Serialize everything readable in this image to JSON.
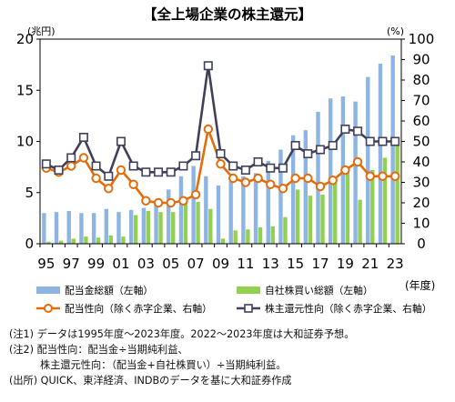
{
  "chart_data": {
    "type": "bar+line",
    "title": "【全上場企業の株主還元】",
    "left_axis": {
      "unit": "(兆円)",
      "ylim": [
        0,
        20
      ],
      "ticks": [
        0,
        5,
        10,
        15,
        20
      ]
    },
    "right_axis": {
      "unit": "(%)",
      "ylim": [
        0,
        100
      ],
      "ticks": [
        0,
        10,
        20,
        30,
        40,
        50,
        60,
        70,
        80,
        90,
        100
      ]
    },
    "x_unit": "(年度)",
    "x": [
      1995,
      1996,
      1997,
      1998,
      1999,
      2000,
      2001,
      2002,
      2003,
      2004,
      2005,
      2006,
      2007,
      2008,
      2009,
      2010,
      2011,
      2012,
      2013,
      2014,
      2015,
      2016,
      2017,
      2018,
      2019,
      2020,
      2021,
      2022,
      2023
    ],
    "x_tick_labels": [
      "95",
      "97",
      "99",
      "01",
      "03",
      "05",
      "07",
      "09",
      "11",
      "13",
      "15",
      "17",
      "19",
      "21",
      "23"
    ],
    "bar_series": [
      {
        "name": "配当金総額（左軸）",
        "color": "#8db4e2",
        "values": [
          3.0,
          3.1,
          3.2,
          3.0,
          3.0,
          3.4,
          3.1,
          3.3,
          3.5,
          4.2,
          5.3,
          6.6,
          7.6,
          6.6,
          5.7,
          6.1,
          6.6,
          6.9,
          8.1,
          9.2,
          10.6,
          11.1,
          12.9,
          14.2,
          14.4,
          13.9,
          16.3,
          17.6,
          18.4
        ]
      },
      {
        "name": "自社株買い総額（左軸）",
        "color": "#92d050",
        "values": [
          0.2,
          0.3,
          0.5,
          0.7,
          0.6,
          0.8,
          0.7,
          2.8,
          3.2,
          3.1,
          3.1,
          4.0,
          4.1,
          3.4,
          0.5,
          1.3,
          1.4,
          1.6,
          1.7,
          2.6,
          5.3,
          4.7,
          4.8,
          6.2,
          7.2,
          4.3,
          7.2,
          8.4,
          9.6
        ]
      }
    ],
    "line_series": [
      {
        "name": "配当性向（除く赤字企業、右軸）",
        "color": "#e46c0a",
        "marker": "circle",
        "values": [
          37,
          35,
          38,
          42,
          32,
          27,
          36,
          29,
          21,
          20,
          20,
          21,
          24,
          56,
          39,
          32,
          30,
          32,
          29,
          27,
          32,
          32,
          28,
          31,
          36,
          40,
          33,
          33,
          33
        ]
      },
      {
        "name": "株主還元性向（除く赤字企業、右軸）",
        "color": "#40405a",
        "marker": "square",
        "values": [
          39,
          36,
          42,
          52,
          38,
          33,
          50,
          38,
          35,
          35,
          35,
          38,
          43,
          87,
          44,
          38,
          36,
          40,
          37,
          37,
          48,
          44,
          46,
          48,
          56,
          55,
          50,
          50,
          50
        ]
      }
    ]
  },
  "notes": [
    "(注1) データは1995年度～2023年度。2022～2023年度は大和証券予想。",
    "(注2) 配当性向：配当金÷当期純利益、",
    "株主還元性向：（配当金+自社株買い）÷当期純利益。",
    "(出所) QUICK、東洋経済、INDBのデータを基に大和証券作成"
  ],
  "colors": {
    "axis": "#000000",
    "grid": "#bfbfbf"
  }
}
